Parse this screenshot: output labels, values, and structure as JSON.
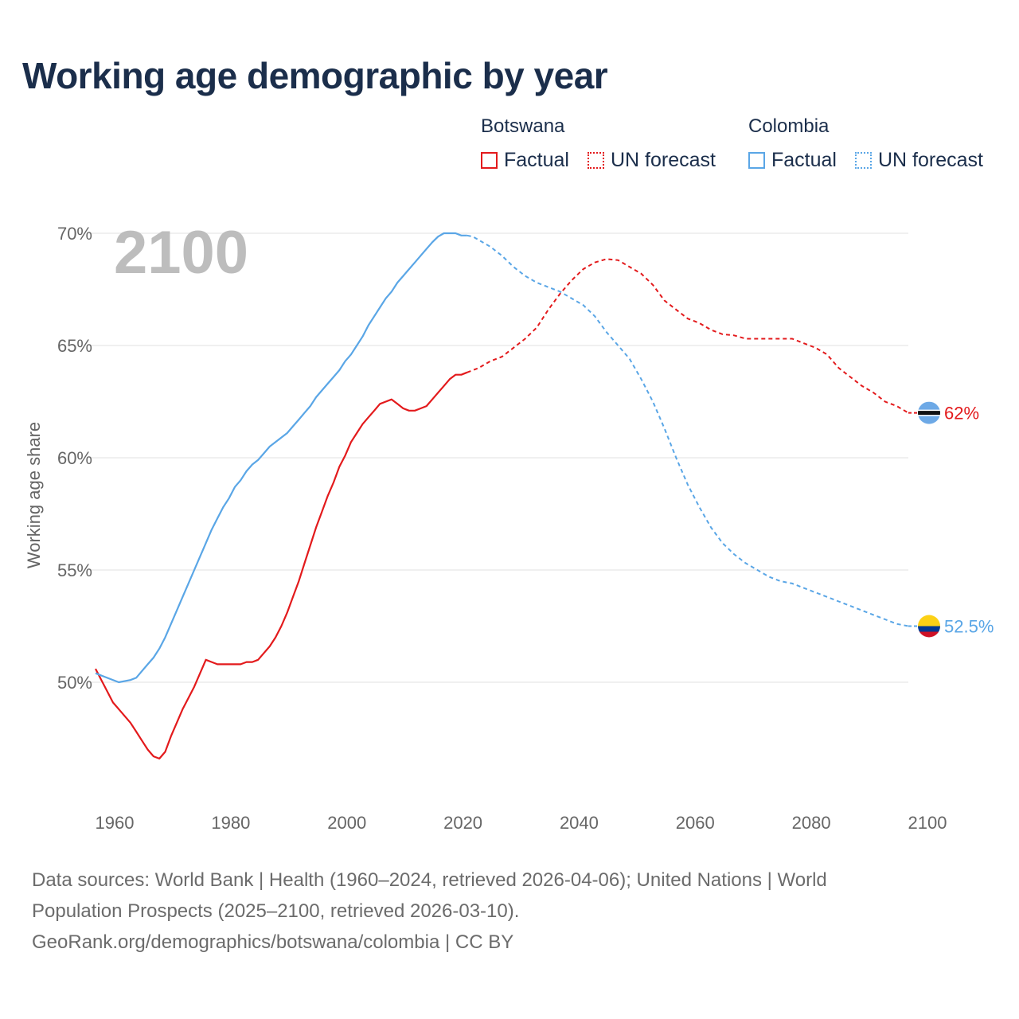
{
  "title": "Working age demographic by year",
  "legend": {
    "countries": [
      {
        "name": "Botswana",
        "color": "#e31a1c",
        "factual_label": "Factual",
        "forecast_label": "UN forecast"
      },
      {
        "name": "Colombia",
        "color": "#5aa6e6",
        "factual_label": "Factual",
        "forecast_label": "UN forecast"
      }
    ]
  },
  "chart_data": {
    "type": "line",
    "title": "Working age demographic by year",
    "xlabel": "",
    "ylabel": "Working age share",
    "xlim": [
      1960,
      2100
    ],
    "ylim": [
      45,
      71
    ],
    "y_ticks": [
      50,
      55,
      60,
      65,
      70
    ],
    "y_tick_labels": [
      "50%",
      "55%",
      "60%",
      "65%",
      "70%"
    ],
    "x_ticks": [
      1960,
      1980,
      2000,
      2020,
      2040,
      2060,
      2080,
      2100
    ],
    "x_tick_labels": [
      "1960",
      "1980",
      "2000",
      "2020",
      "2040",
      "2060",
      "2080",
      "2100"
    ],
    "grid": true,
    "current_year_label": "2100",
    "factual_end_year": 2024,
    "series": [
      {
        "name": "Botswana",
        "color": "#e31a1c",
        "end_label": "62%",
        "flag": "botswana",
        "points": [
          [
            1960,
            50.6
          ],
          [
            1961,
            50.1
          ],
          [
            1962,
            49.6
          ],
          [
            1963,
            49.1
          ],
          [
            1964,
            48.8
          ],
          [
            1965,
            48.5
          ],
          [
            1966,
            48.2
          ],
          [
            1967,
            47.8
          ],
          [
            1968,
            47.4
          ],
          [
            1969,
            47.0
          ],
          [
            1970,
            46.7
          ],
          [
            1971,
            46.6
          ],
          [
            1972,
            46.9
          ],
          [
            1973,
            47.6
          ],
          [
            1974,
            48.2
          ],
          [
            1975,
            48.8
          ],
          [
            1976,
            49.3
          ],
          [
            1977,
            49.8
          ],
          [
            1978,
            50.4
          ],
          [
            1979,
            51.0
          ],
          [
            1980,
            50.9
          ],
          [
            1981,
            50.8
          ],
          [
            1982,
            50.8
          ],
          [
            1983,
            50.8
          ],
          [
            1984,
            50.8
          ],
          [
            1985,
            50.8
          ],
          [
            1986,
            50.9
          ],
          [
            1987,
            50.9
          ],
          [
            1988,
            51.0
          ],
          [
            1989,
            51.3
          ],
          [
            1990,
            51.6
          ],
          [
            1991,
            52.0
          ],
          [
            1992,
            52.5
          ],
          [
            1993,
            53.1
          ],
          [
            1994,
            53.8
          ],
          [
            1995,
            54.5
          ],
          [
            1996,
            55.3
          ],
          [
            1997,
            56.1
          ],
          [
            1998,
            56.9
          ],
          [
            1999,
            57.6
          ],
          [
            2000,
            58.3
          ],
          [
            2001,
            58.9
          ],
          [
            2002,
            59.6
          ],
          [
            2003,
            60.1
          ],
          [
            2004,
            60.7
          ],
          [
            2005,
            61.1
          ],
          [
            2006,
            61.5
          ],
          [
            2007,
            61.8
          ],
          [
            2008,
            62.1
          ],
          [
            2009,
            62.4
          ],
          [
            2010,
            62.5
          ],
          [
            2011,
            62.6
          ],
          [
            2012,
            62.4
          ],
          [
            2013,
            62.2
          ],
          [
            2014,
            62.1
          ],
          [
            2015,
            62.1
          ],
          [
            2016,
            62.2
          ],
          [
            2017,
            62.3
          ],
          [
            2018,
            62.6
          ],
          [
            2019,
            62.9
          ],
          [
            2020,
            63.2
          ],
          [
            2021,
            63.5
          ],
          [
            2022,
            63.7
          ],
          [
            2023,
            63.7
          ],
          [
            2024,
            63.8
          ],
          [
            2025,
            63.9
          ],
          [
            2026,
            64.0
          ],
          [
            2028,
            64.3
          ],
          [
            2030,
            64.5
          ],
          [
            2032,
            64.9
          ],
          [
            2034,
            65.3
          ],
          [
            2036,
            65.8
          ],
          [
            2038,
            66.6
          ],
          [
            2040,
            67.3
          ],
          [
            2042,
            67.9
          ],
          [
            2044,
            68.4
          ],
          [
            2046,
            68.7
          ],
          [
            2048,
            68.85
          ],
          [
            2050,
            68.8
          ],
          [
            2052,
            68.5
          ],
          [
            2054,
            68.2
          ],
          [
            2056,
            67.7
          ],
          [
            2058,
            67.0
          ],
          [
            2060,
            66.6
          ],
          [
            2062,
            66.2
          ],
          [
            2064,
            66.0
          ],
          [
            2066,
            65.7
          ],
          [
            2068,
            65.5
          ],
          [
            2070,
            65.45
          ],
          [
            2072,
            65.3
          ],
          [
            2074,
            65.3
          ],
          [
            2076,
            65.3
          ],
          [
            2078,
            65.3
          ],
          [
            2080,
            65.3
          ],
          [
            2082,
            65.1
          ],
          [
            2084,
            64.9
          ],
          [
            2086,
            64.6
          ],
          [
            2088,
            64.0
          ],
          [
            2090,
            63.6
          ],
          [
            2092,
            63.2
          ],
          [
            2094,
            62.9
          ],
          [
            2096,
            62.5
          ],
          [
            2098,
            62.3
          ],
          [
            2100,
            62.0
          ]
        ]
      },
      {
        "name": "Colombia",
        "color": "#5aa6e6",
        "end_label": "52.5%",
        "flag": "colombia",
        "points": [
          [
            1960,
            50.4
          ],
          [
            1962,
            50.2
          ],
          [
            1964,
            50.0
          ],
          [
            1966,
            50.1
          ],
          [
            1967,
            50.2
          ],
          [
            1968,
            50.5
          ],
          [
            1969,
            50.8
          ],
          [
            1970,
            51.1
          ],
          [
            1971,
            51.5
          ],
          [
            1972,
            52.0
          ],
          [
            1973,
            52.6
          ],
          [
            1974,
            53.2
          ],
          [
            1975,
            53.8
          ],
          [
            1976,
            54.4
          ],
          [
            1977,
            55.0
          ],
          [
            1978,
            55.6
          ],
          [
            1979,
            56.2
          ],
          [
            1980,
            56.8
          ],
          [
            1981,
            57.3
          ],
          [
            1982,
            57.8
          ],
          [
            1983,
            58.2
          ],
          [
            1984,
            58.7
          ],
          [
            1985,
            59.0
          ],
          [
            1986,
            59.4
          ],
          [
            1987,
            59.7
          ],
          [
            1988,
            59.9
          ],
          [
            1989,
            60.2
          ],
          [
            1990,
            60.5
          ],
          [
            1991,
            60.7
          ],
          [
            1992,
            60.9
          ],
          [
            1993,
            61.1
          ],
          [
            1994,
            61.4
          ],
          [
            1995,
            61.7
          ],
          [
            1996,
            62.0
          ],
          [
            1997,
            62.3
          ],
          [
            1998,
            62.7
          ],
          [
            1999,
            63.0
          ],
          [
            2000,
            63.3
          ],
          [
            2001,
            63.6
          ],
          [
            2002,
            63.9
          ],
          [
            2003,
            64.3
          ],
          [
            2004,
            64.6
          ],
          [
            2005,
            65.0
          ],
          [
            2006,
            65.4
          ],
          [
            2007,
            65.9
          ],
          [
            2008,
            66.3
          ],
          [
            2009,
            66.7
          ],
          [
            2010,
            67.1
          ],
          [
            2011,
            67.4
          ],
          [
            2012,
            67.8
          ],
          [
            2013,
            68.1
          ],
          [
            2014,
            68.4
          ],
          [
            2015,
            68.7
          ],
          [
            2016,
            69.0
          ],
          [
            2017,
            69.3
          ],
          [
            2018,
            69.6
          ],
          [
            2019,
            69.85
          ],
          [
            2020,
            70.0
          ],
          [
            2021,
            70.0
          ],
          [
            2022,
            70.0
          ],
          [
            2023,
            69.9
          ],
          [
            2024,
            69.9
          ],
          [
            2025,
            69.85
          ],
          [
            2026,
            69.7
          ],
          [
            2028,
            69.4
          ],
          [
            2030,
            69.0
          ],
          [
            2032,
            68.5
          ],
          [
            2034,
            68.1
          ],
          [
            2036,
            67.8
          ],
          [
            2038,
            67.6
          ],
          [
            2040,
            67.4
          ],
          [
            2042,
            67.1
          ],
          [
            2044,
            66.8
          ],
          [
            2046,
            66.3
          ],
          [
            2048,
            65.6
          ],
          [
            2050,
            65.0
          ],
          [
            2052,
            64.4
          ],
          [
            2054,
            63.5
          ],
          [
            2056,
            62.5
          ],
          [
            2058,
            61.3
          ],
          [
            2060,
            60.0
          ],
          [
            2062,
            58.8
          ],
          [
            2064,
            57.8
          ],
          [
            2066,
            56.9
          ],
          [
            2068,
            56.2
          ],
          [
            2070,
            55.7
          ],
          [
            2072,
            55.3
          ],
          [
            2074,
            55.0
          ],
          [
            2076,
            54.7
          ],
          [
            2078,
            54.5
          ],
          [
            2080,
            54.4
          ],
          [
            2082,
            54.2
          ],
          [
            2084,
            54.0
          ],
          [
            2086,
            53.8
          ],
          [
            2088,
            53.6
          ],
          [
            2090,
            53.4
          ],
          [
            2092,
            53.2
          ],
          [
            2094,
            53.0
          ],
          [
            2096,
            52.8
          ],
          [
            2098,
            52.6
          ],
          [
            2100,
            52.5
          ]
        ]
      }
    ]
  },
  "footer": {
    "line1": "Data sources: World Bank | Health (1960–2024, retrieved 2026-04-06); United Nations | World",
    "line2": "Population Prospects (2025–2100, retrieved 2026-03-10).",
    "line3": "GeoRank.org/demographics/botswana/colombia | CC BY"
  }
}
